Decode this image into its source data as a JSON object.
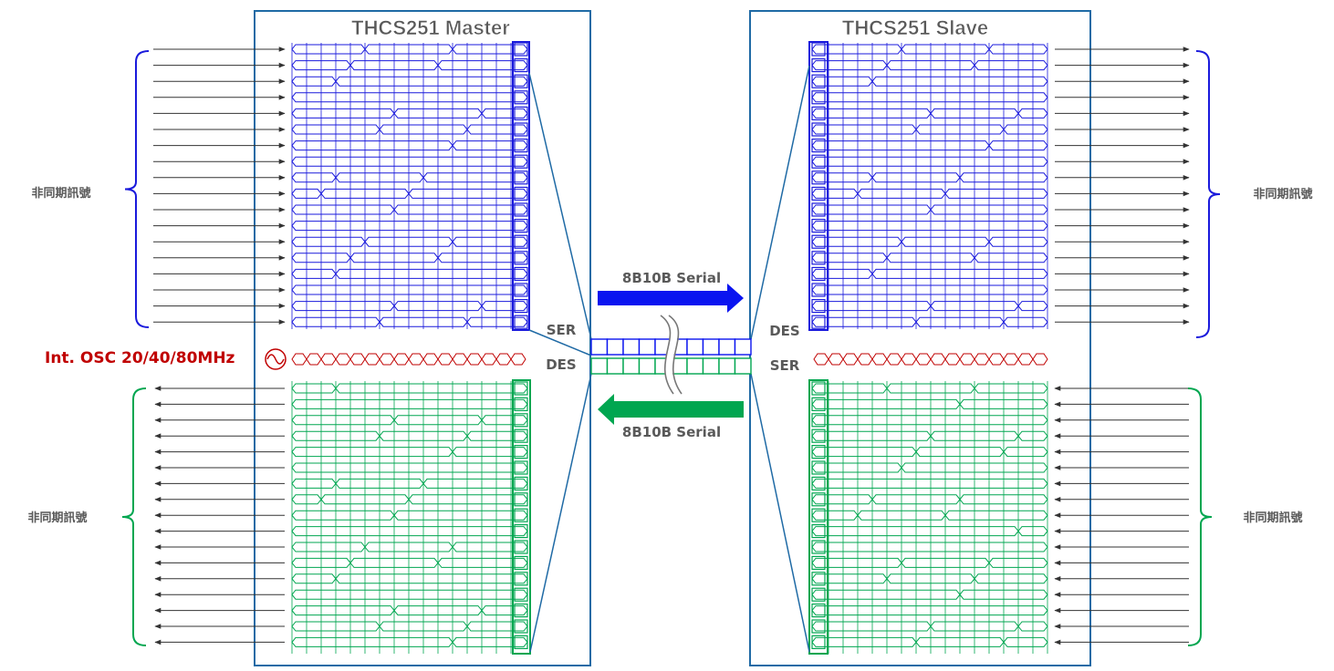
{
  "master": {
    "title": "THCS251 Master",
    "ser_label": "SER",
    "des_label": "DES"
  },
  "slave": {
    "title": "THCS251 Slave",
    "ser_label": "SER",
    "des_label": "DES"
  },
  "oscillator": {
    "label": "Int. OSC 20/40/80MHz",
    "icon": "sine-wave-icon"
  },
  "link": {
    "forward": {
      "label": "8B10B Serial",
      "color": "#0a14f0"
    },
    "backward": {
      "label": "8B10B Serial",
      "color": "#00a650"
    }
  },
  "groups": {
    "master_inputs": "非同期訊號",
    "master_outputs": "非同期訊號",
    "slave_outputs": "非同期訊號",
    "slave_inputs": "非同期訊號"
  },
  "signal_counts": {
    "tx_lines": 18,
    "rx_lines": 17
  },
  "colors": {
    "tx_signal": "#1a1adc",
    "rx_signal": "#00a650",
    "clock": "#c00000",
    "box_border": "#1f6aa5",
    "arrow": "#333333",
    "text": "#595959"
  }
}
